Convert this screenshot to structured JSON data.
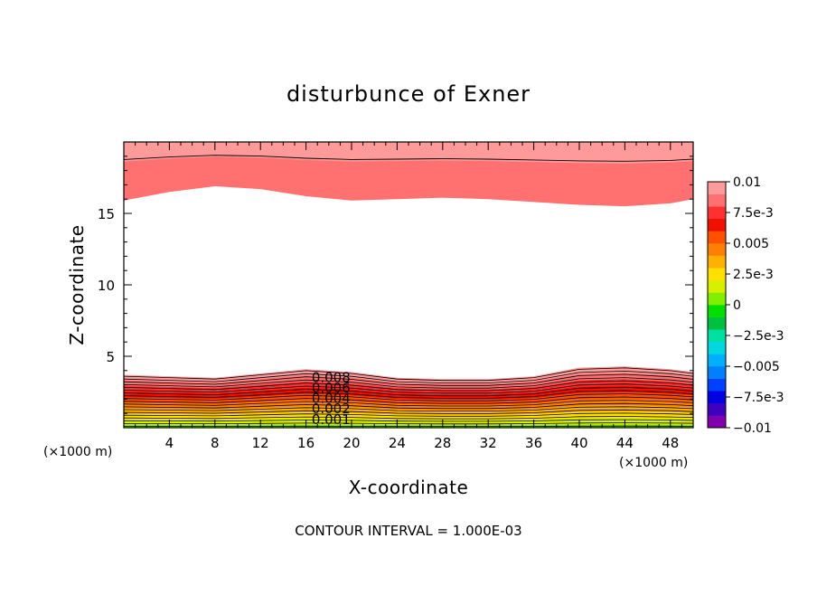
{
  "chart_data": {
    "type": "heatmap",
    "title": "disturbunce of Exner",
    "xlabel": "X-coordinate",
    "ylabel": "Z-coordinate",
    "x_unit": "(×1000 m)",
    "y_unit": "(×1000 m)",
    "xlim": [
      0,
      50
    ],
    "ylim": [
      0,
      20
    ],
    "x_ticks": [
      "4",
      "8",
      "12",
      "16",
      "20",
      "24",
      "28",
      "32",
      "36",
      "40",
      "44",
      "48"
    ],
    "x_tick_values": [
      4,
      8,
      12,
      16,
      20,
      24,
      28,
      32,
      36,
      40,
      44,
      48
    ],
    "y_ticks": [
      "5",
      "10",
      "15"
    ],
    "y_tick_values": [
      5,
      10,
      15
    ],
    "contour_labels": [
      "0.008",
      "0.006",
      "0.004",
      "0.002",
      "0.001"
    ],
    "contour_interval_text": "CONTOUR INTERVAL = 1.000E-03",
    "colorbar": {
      "ticks": [
        "0.01",
        "7.5e-3",
        "0.005",
        "2.5e-3",
        "0",
        "−2.5e-3",
        "−0.005",
        "−7.5e-3",
        "−0.01"
      ],
      "colors": [
        "#8000b0",
        "#4000c0",
        "#0000e0",
        "#0040ff",
        "#0080ff",
        "#00b0ff",
        "#00d8e0",
        "#00e0a0",
        "#00c040",
        "#00e000",
        "#80f000",
        "#d8f000",
        "#ffe000",
        "#ffb000",
        "#ff8000",
        "#ff5000",
        "#f01000",
        "#ff3030",
        "#ff7070",
        "#ff9a9a"
      ]
    },
    "lower_layer": {
      "x": [
        0,
        4,
        8,
        12,
        16,
        20,
        24,
        28,
        32,
        36,
        40,
        44,
        48,
        50
      ],
      "top": [
        3.7,
        3.6,
        3.5,
        3.8,
        4.1,
        3.9,
        3.5,
        3.4,
        3.4,
        3.6,
        4.2,
        4.3,
        4.1,
        3.9
      ],
      "levels": [
        0.0095,
        0.009,
        0.0085,
        0.008,
        0.0075,
        0.007,
        0.0065,
        0.006,
        0.0055,
        0.005,
        0.0045,
        0.004,
        0.0035,
        0.003,
        0.0025,
        0.002,
        0.0015,
        0.001,
        0.0005
      ]
    },
    "upper_layer": {
      "x": [
        0,
        4,
        8,
        12,
        16,
        20,
        24,
        28,
        32,
        36,
        40,
        44,
        48,
        50
      ],
      "bottom": [
        15.9,
        16.5,
        16.9,
        16.7,
        16.2,
        15.9,
        16.0,
        16.1,
        16.0,
        15.8,
        15.6,
        15.5,
        15.7,
        16.0
      ],
      "levels": [
        0.0095,
        0.0085,
        0.008
      ]
    }
  }
}
